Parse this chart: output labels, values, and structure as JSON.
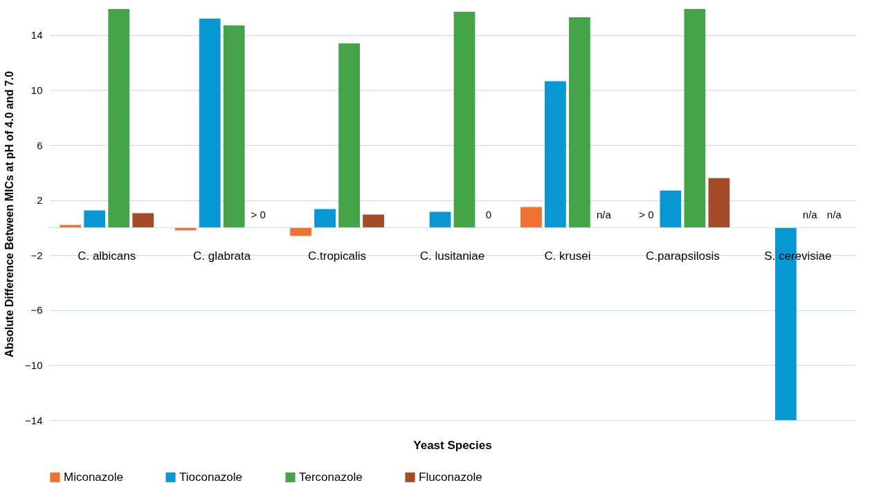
{
  "chart_data": {
    "type": "bar",
    "xlabel": "Yeast Species",
    "ylabel": "Absolute Difference Between MICs at pH of 4.0 and 7.0",
    "categories": [
      "C. albicans",
      "C. glabrata",
      "C.tropicalis",
      "C. lusitaniae",
      "C. krusei",
      "C.parapsilosis",
      "S. cerevisiae"
    ],
    "series": [
      {
        "name": "Miconazole",
        "color": "#f07232",
        "values": [
          0.2,
          -0.2,
          -0.6,
          null,
          1.5,
          null,
          null
        ],
        "value_labels": [
          null,
          null,
          null,
          null,
          null,
          "> 0",
          null
        ]
      },
      {
        "name": "Tioconazole",
        "color": "#0798d4",
        "values": [
          1.25,
          15.2,
          1.35,
          1.15,
          10.65,
          2.7,
          -14
        ]
      },
      {
        "name": "Terconazole",
        "color": "#44a447",
        "values": [
          15.9,
          14.7,
          13.4,
          15.7,
          15.3,
          15.9,
          null
        ],
        "value_labels": [
          null,
          null,
          null,
          null,
          null,
          null,
          "n/a"
        ]
      },
      {
        "name": "Fluconazole",
        "color": "#a34c27",
        "values": [
          1.05,
          null,
          0.95,
          null,
          null,
          3.6,
          null
        ],
        "value_labels": [
          null,
          "> 0",
          null,
          "0",
          "n/a",
          null,
          "n/a"
        ]
      }
    ],
    "ylim": [
      -14,
      16
    ],
    "yticks": [
      -14,
      -10,
      -6,
      -2,
      2,
      6,
      10,
      14
    ],
    "grid": "y",
    "legend": "bottom",
    "ref_lines": [
      {
        "axis": "y",
        "value": 0,
        "color": "#c9d9ee"
      }
    ]
  }
}
